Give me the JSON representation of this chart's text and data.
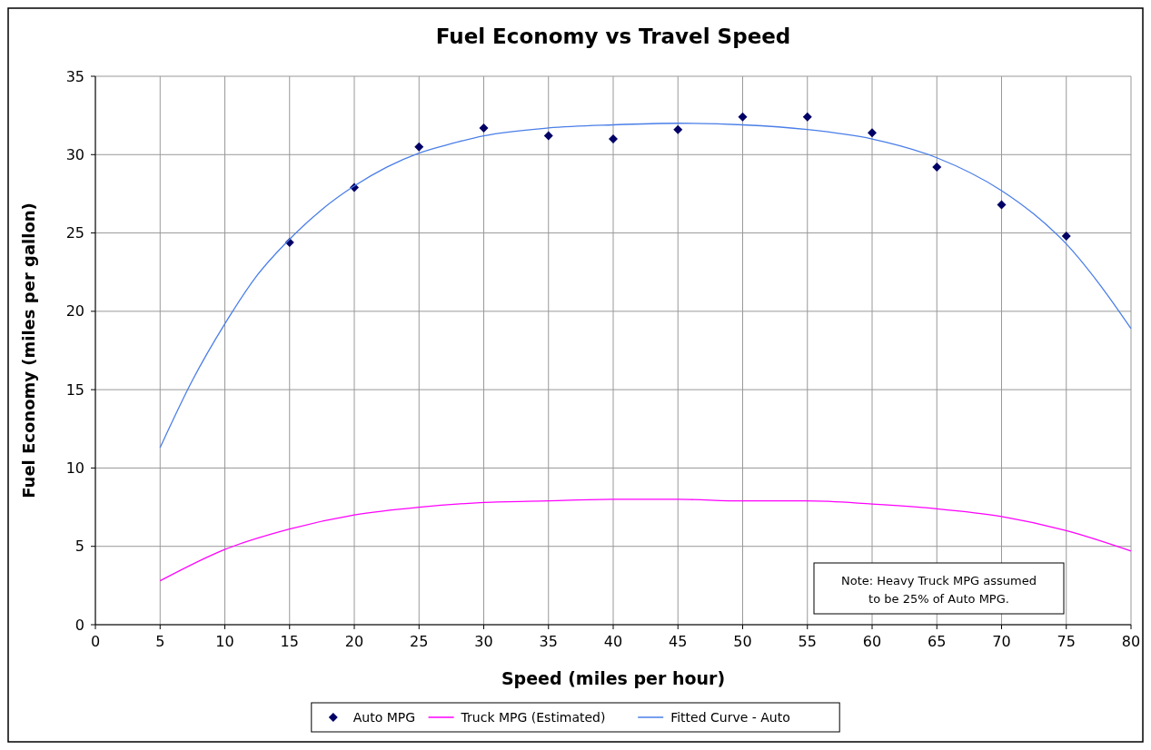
{
  "chart_data": {
    "type": "scatter",
    "title": "Fuel Economy vs Travel Speed",
    "xlabel": "Speed (miles per hour)",
    "ylabel": "Fuel Economy (miles per gallon)",
    "xlim": [
      0,
      80
    ],
    "ylim": [
      0,
      35
    ],
    "xticks": [
      0,
      5,
      10,
      15,
      20,
      25,
      30,
      35,
      40,
      45,
      50,
      55,
      60,
      65,
      70,
      75,
      80
    ],
    "yticks": [
      0,
      5,
      10,
      15,
      20,
      25,
      30,
      35
    ],
    "grid": true,
    "legend": "bottom",
    "annotations": [
      "Note: Heavy Truck MPG assumed to be 25% of Auto MPG."
    ],
    "series": [
      {
        "name": "Auto MPG",
        "marker": "diamond",
        "color": "#000066",
        "x": [
          15,
          20,
          25,
          30,
          35,
          40,
          45,
          50,
          55,
          60,
          65,
          70,
          75
        ],
        "values": [
          24.4,
          27.9,
          30.5,
          31.7,
          31.2,
          31.0,
          31.6,
          32.4,
          32.4,
          31.4,
          29.2,
          26.8,
          24.8
        ]
      },
      {
        "name": "Truck MPG (Estimated)",
        "type": "line",
        "marker": "none",
        "color": "#ff00ff",
        "x": [
          5,
          10,
          15,
          20,
          25,
          30,
          35,
          40,
          45,
          50,
          55,
          60,
          65,
          70,
          75,
          80
        ],
        "values": [
          2.8,
          4.8,
          6.1,
          7.0,
          7.5,
          7.8,
          7.9,
          8.0,
          8.0,
          7.9,
          7.9,
          7.7,
          7.4,
          6.9,
          6.0,
          4.7
        ]
      },
      {
        "name": "Fitted Curve  - Auto",
        "type": "line",
        "marker": "none",
        "color": "#4a7ee8",
        "x": [
          5,
          7.5,
          10,
          12.5,
          15,
          17.5,
          20,
          22.5,
          25,
          27.5,
          30,
          35,
          40,
          45,
          50,
          55,
          60,
          65,
          70,
          72.5,
          75,
          77.5,
          80
        ],
        "values": [
          11.3,
          15.6,
          19.2,
          22.3,
          24.6,
          26.5,
          28.0,
          29.2,
          30.1,
          30.7,
          31.2,
          31.7,
          31.9,
          32.0,
          31.9,
          31.6,
          31.0,
          29.8,
          27.7,
          26.2,
          24.3,
          21.8,
          18.9
        ]
      }
    ]
  }
}
